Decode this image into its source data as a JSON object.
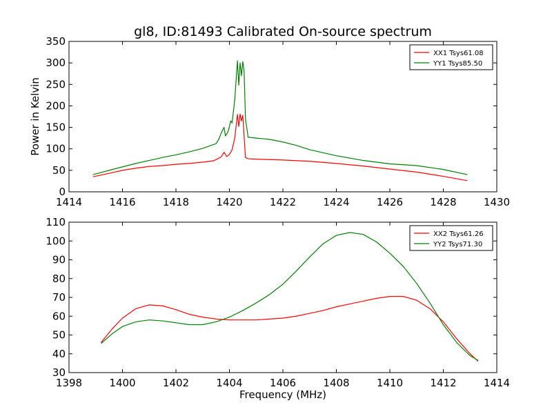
{
  "title": "gl8, ID:81493 Calibrated On-source spectrum",
  "chart_data": [
    {
      "type": "line",
      "ylabel": "Power in Kelvin",
      "xlabel": "",
      "xlim": [
        1414,
        1430
      ],
      "ylim": [
        0,
        350
      ],
      "xticks": [
        "1414",
        "1416",
        "1418",
        "1420",
        "1422",
        "1424",
        "1426",
        "1428",
        "1430"
      ],
      "yticks": [
        "0",
        "50",
        "100",
        "150",
        "200",
        "250",
        "300",
        "350"
      ],
      "legend_position": "top-right",
      "series": [
        {
          "name": "XX1 Tsys61.08",
          "color": "#ff0000",
          "x": [
            1414.9,
            1415.5,
            1416.0,
            1416.5,
            1417.0,
            1417.5,
            1418.0,
            1418.5,
            1419.0,
            1419.4,
            1419.6,
            1419.7,
            1419.8,
            1419.9,
            1420.0,
            1420.1,
            1420.2,
            1420.3,
            1420.35,
            1420.4,
            1420.45,
            1420.5,
            1420.55,
            1420.6,
            1420.7,
            1421.0,
            1422.0,
            1423.0,
            1424.0,
            1425.0,
            1426.0,
            1427.0,
            1428.0,
            1428.9
          ],
          "y": [
            35,
            43,
            50,
            55,
            59,
            61,
            64,
            66,
            69,
            72,
            78,
            82,
            92,
            82,
            87,
            98,
            125,
            180,
            152,
            181,
            165,
            178,
            130,
            80,
            77,
            76,
            74,
            71,
            66,
            60,
            53,
            46,
            36,
            26
          ]
        },
        {
          "name": "YY1 Tsys85.50",
          "color": "#008000",
          "x": [
            1414.9,
            1415.5,
            1416.0,
            1416.5,
            1417.0,
            1417.5,
            1418.0,
            1418.5,
            1419.0,
            1419.5,
            1419.6,
            1419.7,
            1419.8,
            1419.85,
            1419.95,
            1420.05,
            1420.1,
            1420.2,
            1420.3,
            1420.35,
            1420.4,
            1420.45,
            1420.5,
            1420.55,
            1420.6,
            1420.7,
            1421.0,
            1421.5,
            1422.0,
            1422.5,
            1423.0,
            1424.0,
            1425.0,
            1426.0,
            1427.0,
            1428.0,
            1428.9
          ],
          "y": [
            40,
            50,
            58,
            66,
            73,
            80,
            86,
            93,
            101,
            112,
            122,
            138,
            150,
            130,
            140,
            165,
            160,
            215,
            305,
            248,
            300,
            270,
            303,
            280,
            170,
            127,
            125,
            122,
            116,
            108,
            98,
            84,
            73,
            65,
            61,
            52,
            40
          ]
        }
      ]
    },
    {
      "type": "line",
      "xlabel": "Frequency (MHz)",
      "ylabel": "",
      "xlim": [
        1398,
        1414
      ],
      "ylim": [
        30,
        110
      ],
      "xticks": [
        "1398",
        "1400",
        "1402",
        "1404",
        "1406",
        "1408",
        "1410",
        "1412",
        "1414"
      ],
      "yticks": [
        "30",
        "40",
        "50",
        "60",
        "70",
        "80",
        "90",
        "100",
        "110"
      ],
      "legend_position": "top-right",
      "series": [
        {
          "name": "XX2 Tsys61.26",
          "color": "#ff0000",
          "x": [
            1399.2,
            1399.6,
            1400.0,
            1400.5,
            1401.0,
            1401.5,
            1402.0,
            1402.5,
            1403.0,
            1403.5,
            1404.0,
            1404.5,
            1405.0,
            1405.5,
            1406.0,
            1406.5,
            1407.0,
            1407.5,
            1408.0,
            1408.5,
            1409.0,
            1409.5,
            1410.0,
            1410.5,
            1411.0,
            1411.5,
            1412.0,
            1412.5,
            1413.0,
            1413.3
          ],
          "y": [
            46,
            53,
            59,
            64,
            66,
            65.5,
            63.5,
            61,
            59.5,
            58.5,
            58,
            58,
            58,
            58.5,
            59,
            60,
            61.5,
            63,
            65,
            66.5,
            68,
            69.5,
            70.5,
            70.5,
            68.5,
            64,
            57,
            48,
            40,
            36
          ]
        },
        {
          "name": "YY2 Tsys71.30",
          "color": "#008000",
          "x": [
            1399.2,
            1399.6,
            1400.0,
            1400.5,
            1401.0,
            1401.5,
            1402.0,
            1402.5,
            1403.0,
            1403.5,
            1404.0,
            1404.5,
            1405.0,
            1405.5,
            1406.0,
            1406.5,
            1407.0,
            1407.5,
            1408.0,
            1408.5,
            1409.0,
            1409.5,
            1410.0,
            1410.5,
            1411.0,
            1411.5,
            1412.0,
            1412.5,
            1413.0,
            1413.3
          ],
          "y": [
            45.5,
            50.5,
            54.5,
            57,
            58,
            57.5,
            56.5,
            55.5,
            55.5,
            57,
            59.5,
            63,
            67,
            71.5,
            77,
            84,
            91.5,
            98.5,
            103,
            104.5,
            103.5,
            99.5,
            93.5,
            86.5,
            77.5,
            67,
            55.5,
            46,
            39,
            36.5
          ]
        }
      ]
    }
  ]
}
